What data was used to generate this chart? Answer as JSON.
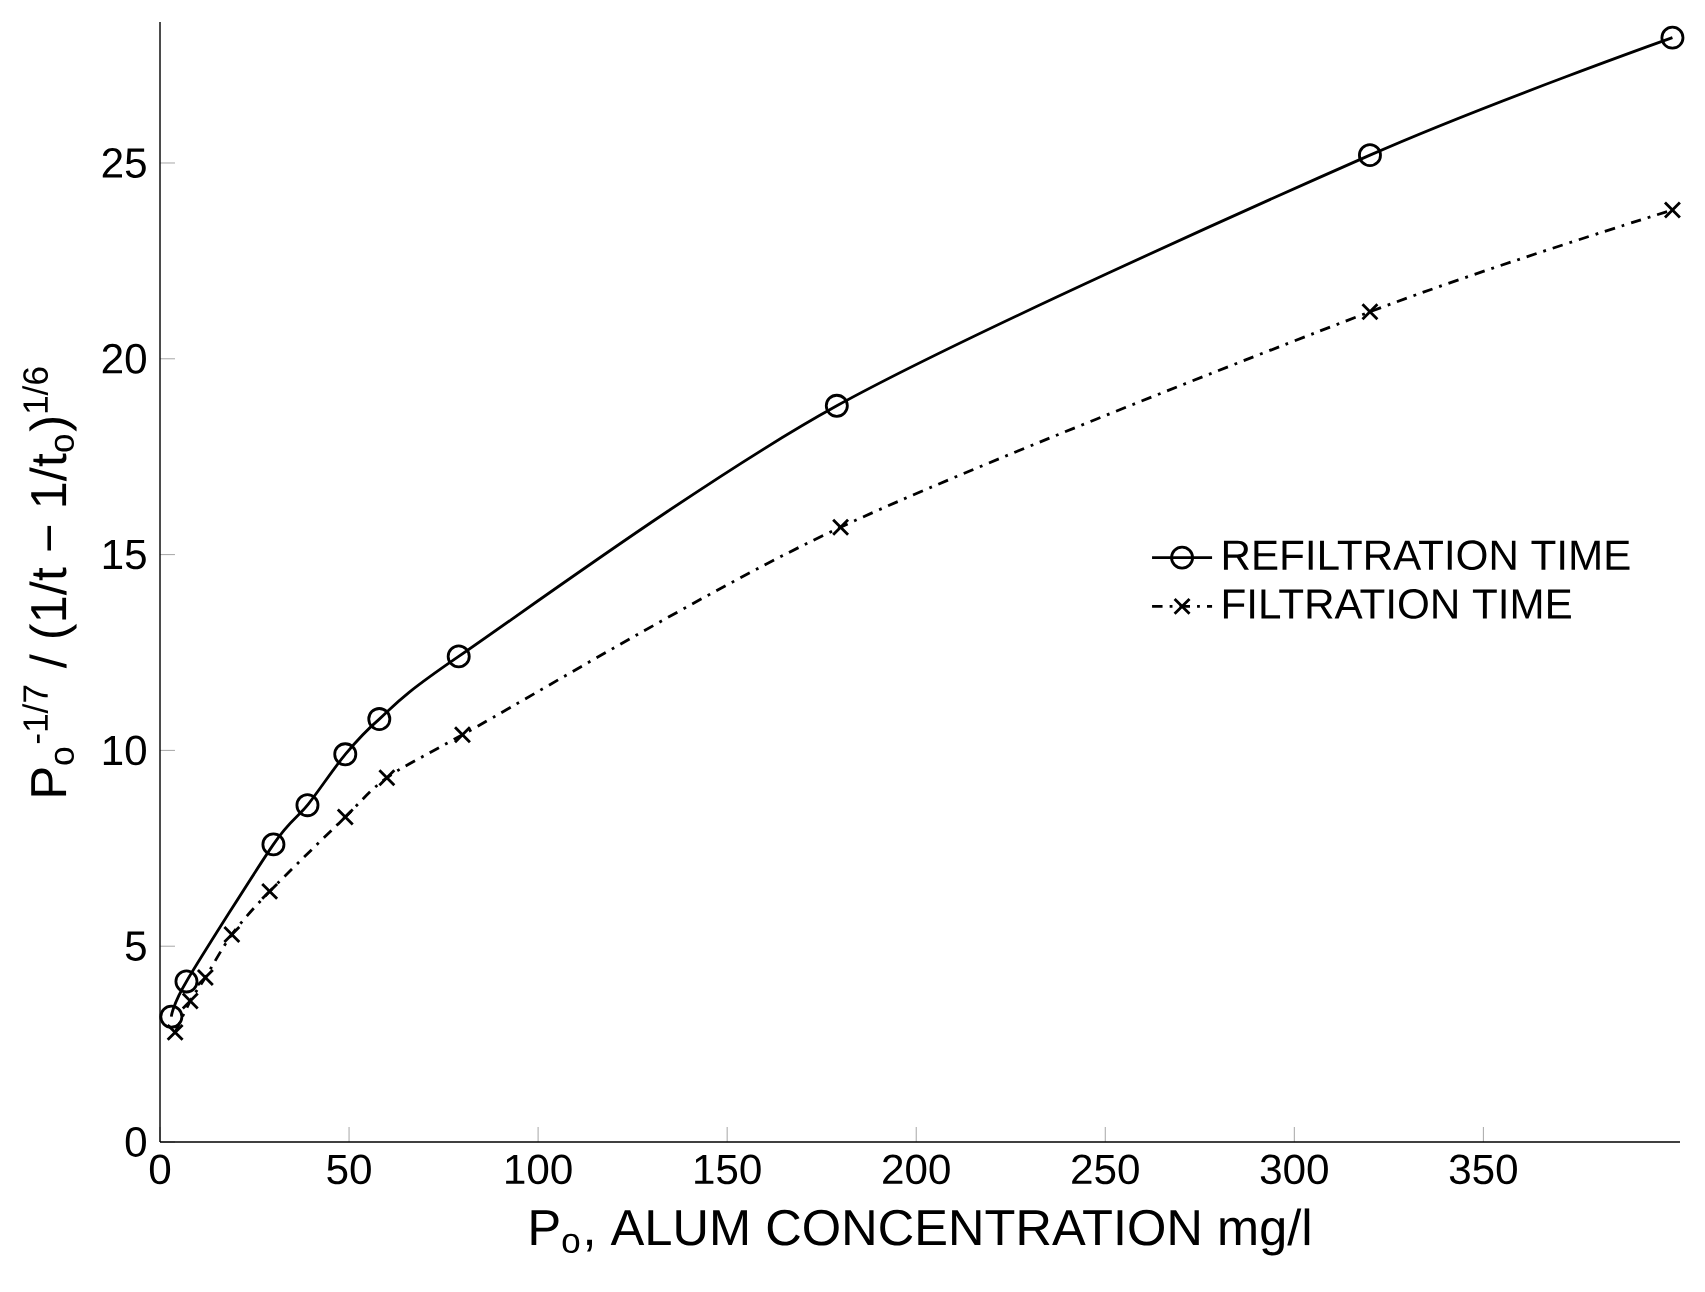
{
  "chart_data": {
    "type": "line",
    "xlabel": "P$_{o}$, ALUM CONCENTRATION mg/l",
    "ylabel": "P$_{o}$$^{-1/7}$ / (1/t − 1/t$_{o}$)$^{1/6}$",
    "xlim": [
      0,
      402
    ],
    "ylim": [
      0,
      28.6
    ],
    "xticks": [
      0,
      50,
      100,
      150,
      200,
      250,
      300,
      350
    ],
    "yticks": [
      0,
      5,
      10,
      15,
      20,
      25
    ],
    "grid": false,
    "legend": "right",
    "series": [
      {
        "name": "REFILTRATION TIME",
        "color": "#000000",
        "marker": "circle",
        "line_style": "solid",
        "x": [
          3,
          7,
          30,
          39,
          49,
          58,
          79,
          179,
          320,
          400
        ],
        "values": [
          3.2,
          4.1,
          7.6,
          8.6,
          9.9,
          10.8,
          12.4,
          18.8,
          25.2,
          28.2
        ]
      },
      {
        "name": "FILTRATION TIME",
        "color": "#000000",
        "marker": "cross",
        "line_style": "dashed",
        "x": [
          4,
          8,
          12,
          19,
          29,
          49,
          60,
          80,
          180,
          320,
          400
        ],
        "values": [
          2.8,
          3.6,
          4.2,
          5.3,
          6.4,
          8.3,
          9.3,
          10.4,
          15.7,
          21.2,
          23.8
        ]
      }
    ]
  }
}
